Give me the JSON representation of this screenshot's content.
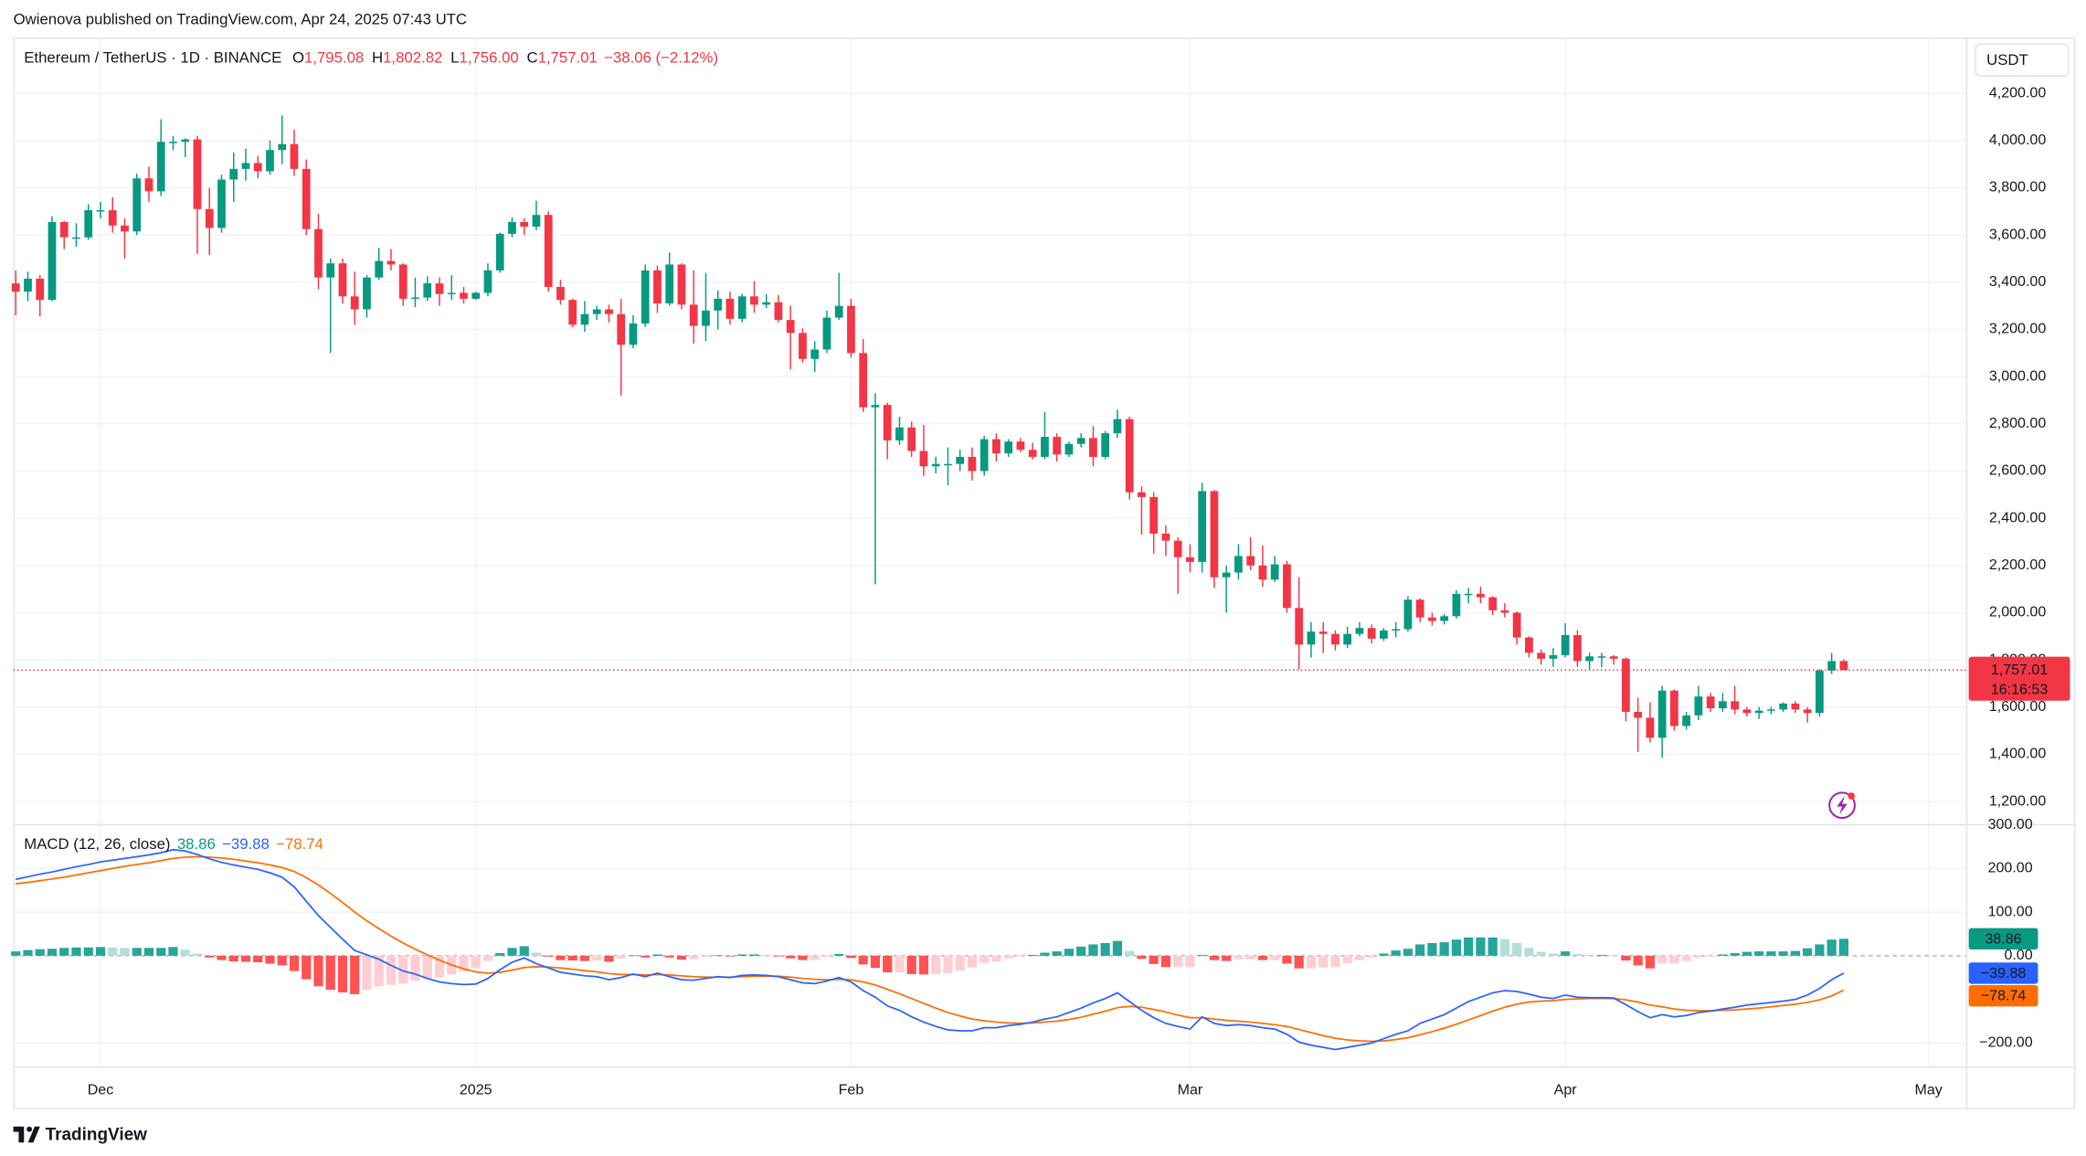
{
  "header": {
    "published": "Owienova published on TradingView.com, Apr 24, 2025 07:43 UTC",
    "brand": "TradingView"
  },
  "chart_data": [
    {
      "type": "candlestick",
      "symbol": "Ethereum / TetherUS · 1D · BINANCE",
      "legend": [
        {
          "key": "O",
          "value": "1,795.08"
        },
        {
          "key": "H",
          "value": "1,802.82"
        },
        {
          "key": "L",
          "value": "1,756.00"
        },
        {
          "key": "C",
          "value": "1,757.01"
        }
      ],
      "change": "−38.06 (−2.12%)",
      "currency": "USDT",
      "last_price_label": "1,757.01",
      "countdown": "16:16:53",
      "open": [
        3395,
        3360,
        3415,
        3325,
        3655,
        3590,
        3590,
        3705,
        3705,
        3640,
        3615,
        3840,
        3785,
        3995,
        3995,
        4005,
        3710,
        3630,
        3835,
        3880,
        3905,
        3870,
        3960,
        3985,
        3880,
        3625,
        3420,
        3480,
        3340,
        3285,
        3420,
        3490,
        3475,
        3330,
        3335,
        3395,
        3350,
        3355,
        3330,
        3355,
        3450,
        3605,
        3655,
        3635,
        3685,
        3380,
        3325,
        3220,
        3265,
        3285,
        3265,
        3135,
        3225,
        3450,
        3310,
        3475,
        3305,
        3215,
        3280,
        3330,
        3245,
        3340,
        3305,
        3315,
        3240,
        3185,
        3075,
        3115,
        3250,
        3300,
        3100,
        2870,
        2880,
        2730,
        2785,
        2685,
        2620,
        2630,
        2630,
        2660,
        2600,
        2735,
        2675,
        2725,
        2690,
        2660,
        2745,
        2670,
        2715,
        2740,
        2660,
        2760,
        2820,
        2510,
        2490,
        2335,
        2305,
        2235,
        2215,
        2515,
        2150,
        2170,
        2240,
        2200,
        2140,
        2205,
        2020,
        1865,
        1920,
        1910,
        1865,
        1910,
        1935,
        1890,
        1925,
        1930,
        2055,
        1980,
        1965,
        1985,
        2080,
        2080,
        2065,
        2010,
        2000,
        1895,
        1830,
        1805,
        1820,
        1905,
        1795,
        1815,
        1815,
        1805,
        1580,
        1555,
        1470,
        1670,
        1520,
        1565,
        1645,
        1595,
        1625,
        1590,
        1575,
        1585,
        1590,
        1615,
        1590,
        1575,
        1755,
        1795.08
      ],
      "high": [
        3450,
        3445,
        3430,
        3680,
        3660,
        3650,
        3730,
        3740,
        3760,
        3670,
        3860,
        3890,
        4090,
        4020,
        4010,
        4020,
        3800,
        3855,
        3950,
        3965,
        3935,
        4000,
        4107,
        4045,
        3920,
        3690,
        3500,
        3500,
        3445,
        3430,
        3545,
        3540,
        3480,
        3420,
        3425,
        3420,
        3430,
        3380,
        3360,
        3480,
        3610,
        3675,
        3670,
        3745,
        3700,
        3410,
        3330,
        3320,
        3300,
        3305,
        3330,
        3260,
        3475,
        3470,
        3525,
        3480,
        3450,
        3440,
        3365,
        3360,
        3350,
        3405,
        3350,
        3345,
        3300,
        3205,
        3150,
        3280,
        3440,
        3330,
        3160,
        2930,
        2890,
        2830,
        2810,
        2795,
        2660,
        2700,
        2690,
        2700,
        2750,
        2760,
        2735,
        2740,
        2720,
        2850,
        2760,
        2725,
        2760,
        2790,
        2770,
        2860,
        2830,
        2535,
        2510,
        2370,
        2320,
        2290,
        2550,
        2520,
        2200,
        2290,
        2320,
        2285,
        2240,
        2220,
        2150,
        1960,
        1960,
        1925,
        1940,
        1960,
        1950,
        1935,
        1960,
        2070,
        2060,
        2000,
        1995,
        2095,
        2105,
        2110,
        2070,
        2040,
        2005,
        1900,
        1845,
        1850,
        1955,
        1925,
        1830,
        1830,
        1820,
        1810,
        1640,
        1620,
        1690,
        1675,
        1580,
        1690,
        1660,
        1660,
        1690,
        1600,
        1600,
        1600,
        1620,
        1625,
        1600,
        1760,
        1830,
        1802.82
      ],
      "low": [
        3260,
        3320,
        3255,
        3320,
        3540,
        3550,
        3580,
        3670,
        3610,
        3500,
        3600,
        3740,
        3765,
        3960,
        3930,
        3520,
        3515,
        3610,
        3740,
        3830,
        3840,
        3855,
        3900,
        3850,
        3600,
        3370,
        3100,
        3310,
        3220,
        3250,
        3410,
        3450,
        3300,
        3295,
        3320,
        3300,
        3325,
        3310,
        3325,
        3340,
        3440,
        3590,
        3600,
        3620,
        3360,
        3305,
        3210,
        3190,
        3240,
        3230,
        2920,
        3120,
        3210,
        3270,
        3300,
        3285,
        3140,
        3150,
        3200,
        3220,
        3230,
        3270,
        3290,
        3230,
        3030,
        3060,
        3020,
        3100,
        3240,
        3080,
        2850,
        2120,
        2650,
        2710,
        2660,
        2580,
        2590,
        2540,
        2600,
        2560,
        2580,
        2640,
        2660,
        2680,
        2650,
        2650,
        2640,
        2660,
        2700,
        2620,
        2650,
        2740,
        2480,
        2330,
        2250,
        2240,
        2080,
        2170,
        2170,
        2105,
        2000,
        2140,
        2180,
        2110,
        2130,
        2000,
        1760,
        1810,
        1830,
        1840,
        1850,
        1900,
        1870,
        1880,
        1895,
        1920,
        1960,
        1945,
        1950,
        1975,
        2040,
        2040,
        1990,
        1980,
        1865,
        1810,
        1780,
        1770,
        1810,
        1770,
        1760,
        1770,
        1780,
        1540,
        1410,
        1450,
        1385,
        1500,
        1505,
        1545,
        1580,
        1580,
        1570,
        1560,
        1550,
        1570,
        1580,
        1575,
        1535,
        1560,
        1740,
        1756
      ],
      "close": [
        3360,
        3415,
        3325,
        3655,
        3590,
        3590,
        3705,
        3705,
        3640,
        3615,
        3840,
        3785,
        3995,
        3995,
        4005,
        3710,
        3630,
        3835,
        3880,
        3905,
        3870,
        3960,
        3985,
        3880,
        3625,
        3420,
        3480,
        3340,
        3285,
        3420,
        3490,
        3475,
        3330,
        3335,
        3395,
        3350,
        3355,
        3330,
        3355,
        3450,
        3605,
        3655,
        3635,
        3685,
        3380,
        3325,
        3220,
        3265,
        3285,
        3265,
        3135,
        3225,
        3450,
        3310,
        3475,
        3305,
        3215,
        3280,
        3330,
        3245,
        3340,
        3305,
        3315,
        3240,
        3185,
        3075,
        3115,
        3250,
        3300,
        3100,
        2870,
        2880,
        2730,
        2785,
        2685,
        2620,
        2630,
        2630,
        2660,
        2600,
        2735,
        2675,
        2725,
        2690,
        2660,
        2745,
        2670,
        2715,
        2740,
        2660,
        2760,
        2820,
        2510,
        2490,
        2335,
        2305,
        2235,
        2215,
        2515,
        2150,
        2170,
        2240,
        2200,
        2140,
        2205,
        2020,
        1865,
        1920,
        1910,
        1865,
        1910,
        1935,
        1890,
        1925,
        1930,
        2055,
        1980,
        1965,
        1985,
        2080,
        2080,
        2065,
        2010,
        2000,
        1895,
        1830,
        1805,
        1820,
        1905,
        1795,
        1815,
        1815,
        1805,
        1580,
        1555,
        1470,
        1670,
        1520,
        1565,
        1645,
        1595,
        1625,
        1590,
        1575,
        1585,
        1590,
        1615,
        1590,
        1575,
        1755,
        1795.08,
        1757.01
      ],
      "up_color": "#089981",
      "down_color": "#f23645",
      "xlim": [
        -0.2,
        161.1
      ],
      "xticks": [
        {
          "value": 7,
          "label": "Dec"
        },
        {
          "value": 38,
          "label": "2025"
        },
        {
          "value": 69,
          "label": "Feb"
        },
        {
          "value": 97,
          "label": "Mar"
        },
        {
          "value": 128,
          "label": "Apr"
        },
        {
          "value": 158,
          "label": "May"
        }
      ],
      "ylim": [
        1105,
        4437
      ],
      "yticks": [
        {
          "value": 1200,
          "label": "1,200.00"
        },
        {
          "value": 1400,
          "label": "1,400.00"
        },
        {
          "value": 1600,
          "label": "1,600.00"
        },
        {
          "value": 1800,
          "label": "1,800.00"
        },
        {
          "value": 2000,
          "label": "2,000.00"
        },
        {
          "value": 2200,
          "label": "2,200.00"
        },
        {
          "value": 2400,
          "label": "2,400.00"
        },
        {
          "value": 2600,
          "label": "2,600.00"
        },
        {
          "value": 2800,
          "label": "2,800.00"
        },
        {
          "value": 3000,
          "label": "3,000.00"
        },
        {
          "value": 3200,
          "label": "3,200.00"
        },
        {
          "value": 3400,
          "label": "3,400.00"
        },
        {
          "value": 3600,
          "label": "3,600.00"
        },
        {
          "value": 3800,
          "label": "3,800.00"
        },
        {
          "value": 4000,
          "label": "4,000.00"
        },
        {
          "value": 4200,
          "label": "4,200.00"
        }
      ],
      "grid": true
    },
    {
      "type": "macd",
      "title": "MACD (12, 26, close)",
      "histogram": {
        "values": [
          10,
          13,
          15,
          16,
          18,
          19,
          19,
          20,
          19,
          18,
          18,
          18,
          18,
          20,
          14,
          5,
          -4,
          -10,
          -13,
          -14,
          -15,
          -18,
          -22,
          -35,
          -54,
          -70,
          -78,
          -84,
          -88,
          -78,
          -70,
          -67,
          -64,
          -57,
          -54,
          -50,
          -43,
          -36,
          -28,
          -12,
          6,
          18,
          22,
          7,
          -2,
          -10,
          -11,
          -12,
          -11,
          -14,
          -7,
          1,
          -4,
          3,
          -4,
          -9,
          -8,
          -3,
          1,
          -1,
          3,
          3,
          2,
          -1,
          -6,
          -10,
          -10,
          -3,
          4,
          -5,
          -20,
          -28,
          -38,
          -38,
          -42,
          -43,
          -42,
          -40,
          -34,
          -27,
          -16,
          -13,
          -6,
          -2,
          2,
          7,
          10,
          16,
          21,
          26,
          29,
          34,
          11,
          -7,
          -19,
          -26,
          -26,
          -26,
          2,
          -10,
          -12,
          -8,
          -8,
          -10,
          -10,
          -18,
          -29,
          -29,
          -27,
          -26,
          -17,
          -10,
          -4,
          5,
          12,
          16,
          26,
          29,
          31,
          37,
          42,
          42,
          42,
          38,
          29,
          18,
          9,
          5,
          10,
          4,
          2,
          2,
          1,
          -11,
          -22,
          -29,
          -18,
          -18,
          -12,
          -4,
          -1,
          3,
          6,
          9,
          10,
          10,
          10,
          11,
          17,
          26,
          37,
          38.86
        ],
        "colors": {
          "positive_growing": "#26a69a",
          "positive_falling": "#b2dfdb",
          "negative_growing": "#ff5252",
          "negative_falling": "#ffcdd2"
        },
        "color": "#089981",
        "last_label": "38.86"
      },
      "macd": {
        "values": [
          175,
          181,
          187,
          192,
          198,
          204,
          209,
          215,
          219,
          223,
          227,
          231,
          236,
          243,
          240,
          232,
          222,
          214,
          208,
          203,
          198,
          190,
          180,
          158,
          125,
          92,
          65,
          38,
          12,
          2,
          -8,
          -22,
          -35,
          -42,
          -52,
          -60,
          -64,
          -66,
          -65,
          -52,
          -32,
          -15,
          -5,
          -18,
          -28,
          -38,
          -42,
          -46,
          -48,
          -55,
          -50,
          -42,
          -48,
          -40,
          -48,
          -55,
          -56,
          -52,
          -48,
          -50,
          -45,
          -44,
          -45,
          -48,
          -55,
          -62,
          -64,
          -58,
          -50,
          -60,
          -80,
          -95,
          -115,
          -125,
          -140,
          -152,
          -162,
          -170,
          -172,
          -172,
          -165,
          -165,
          -160,
          -157,
          -152,
          -145,
          -140,
          -130,
          -120,
          -108,
          -98,
          -85,
          -105,
          -125,
          -142,
          -155,
          -162,
          -168,
          -140,
          -155,
          -160,
          -158,
          -160,
          -165,
          -168,
          -180,
          -198,
          -205,
          -210,
          -215,
          -210,
          -205,
          -200,
          -190,
          -180,
          -172,
          -155,
          -145,
          -135,
          -120,
          -105,
          -95,
          -85,
          -80,
          -82,
          -88,
          -95,
          -98,
          -90,
          -95,
          -96,
          -96,
          -97,
          -112,
          -128,
          -142,
          -135,
          -140,
          -137,
          -130,
          -127,
          -122,
          -118,
          -113,
          -110,
          -107,
          -104,
          -100,
          -90,
          -75,
          -55,
          -39.88
        ],
        "color": "#2962ff",
        "last_label": "−39.88"
      },
      "signal": {
        "values": [
          165,
          168,
          172,
          176,
          180,
          185,
          190,
          195,
          200,
          205,
          209,
          213,
          218,
          223,
          226,
          227,
          226,
          224,
          221,
          217,
          213,
          208,
          202,
          193,
          179,
          162,
          143,
          122,
          100,
          80,
          62,
          45,
          29,
          15,
          2,
          -10,
          -21,
          -30,
          -37,
          -40,
          -38,
          -33,
          -27,
          -25,
          -26,
          -28,
          -31,
          -34,
          -37,
          -41,
          -43,
          -43,
          -44,
          -43,
          -44,
          -46,
          -48,
          -49,
          -49,
          -49,
          -48,
          -47,
          -47,
          -47,
          -49,
          -52,
          -54,
          -55,
          -54,
          -55,
          -60,
          -67,
          -77,
          -87,
          -98,
          -109,
          -120,
          -130,
          -138,
          -145,
          -149,
          -152,
          -154,
          -155,
          -154,
          -152,
          -150,
          -146,
          -141,
          -134,
          -127,
          -119,
          -116,
          -118,
          -123,
          -129,
          -136,
          -142,
          -142,
          -145,
          -148,
          -150,
          -152,
          -155,
          -158,
          -162,
          -169,
          -176,
          -183,
          -189,
          -193,
          -195,
          -196,
          -195,
          -192,
          -188,
          -181,
          -174,
          -166,
          -157,
          -147,
          -137,
          -127,
          -118,
          -111,
          -106,
          -104,
          -103,
          -100,
          -99,
          -98,
          -98,
          -98,
          -101,
          -106,
          -113,
          -117,
          -122,
          -125,
          -126,
          -126,
          -125,
          -124,
          -122,
          -120,
          -117,
          -114,
          -111,
          -107,
          -101,
          -92,
          -78.74
        ],
        "color": "#ff6d00",
        "last_label": "−78.74"
      },
      "ylim": [
        -254,
        302
      ],
      "yticks": [
        {
          "value": 300,
          "label": "300.00"
        },
        {
          "value": 200,
          "label": "200.00"
        },
        {
          "value": 100,
          "label": "100.00"
        },
        {
          "value": 0,
          "label": "0.00"
        },
        {
          "value": -200,
          "label": "−200.00"
        }
      ],
      "grid": true
    }
  ]
}
